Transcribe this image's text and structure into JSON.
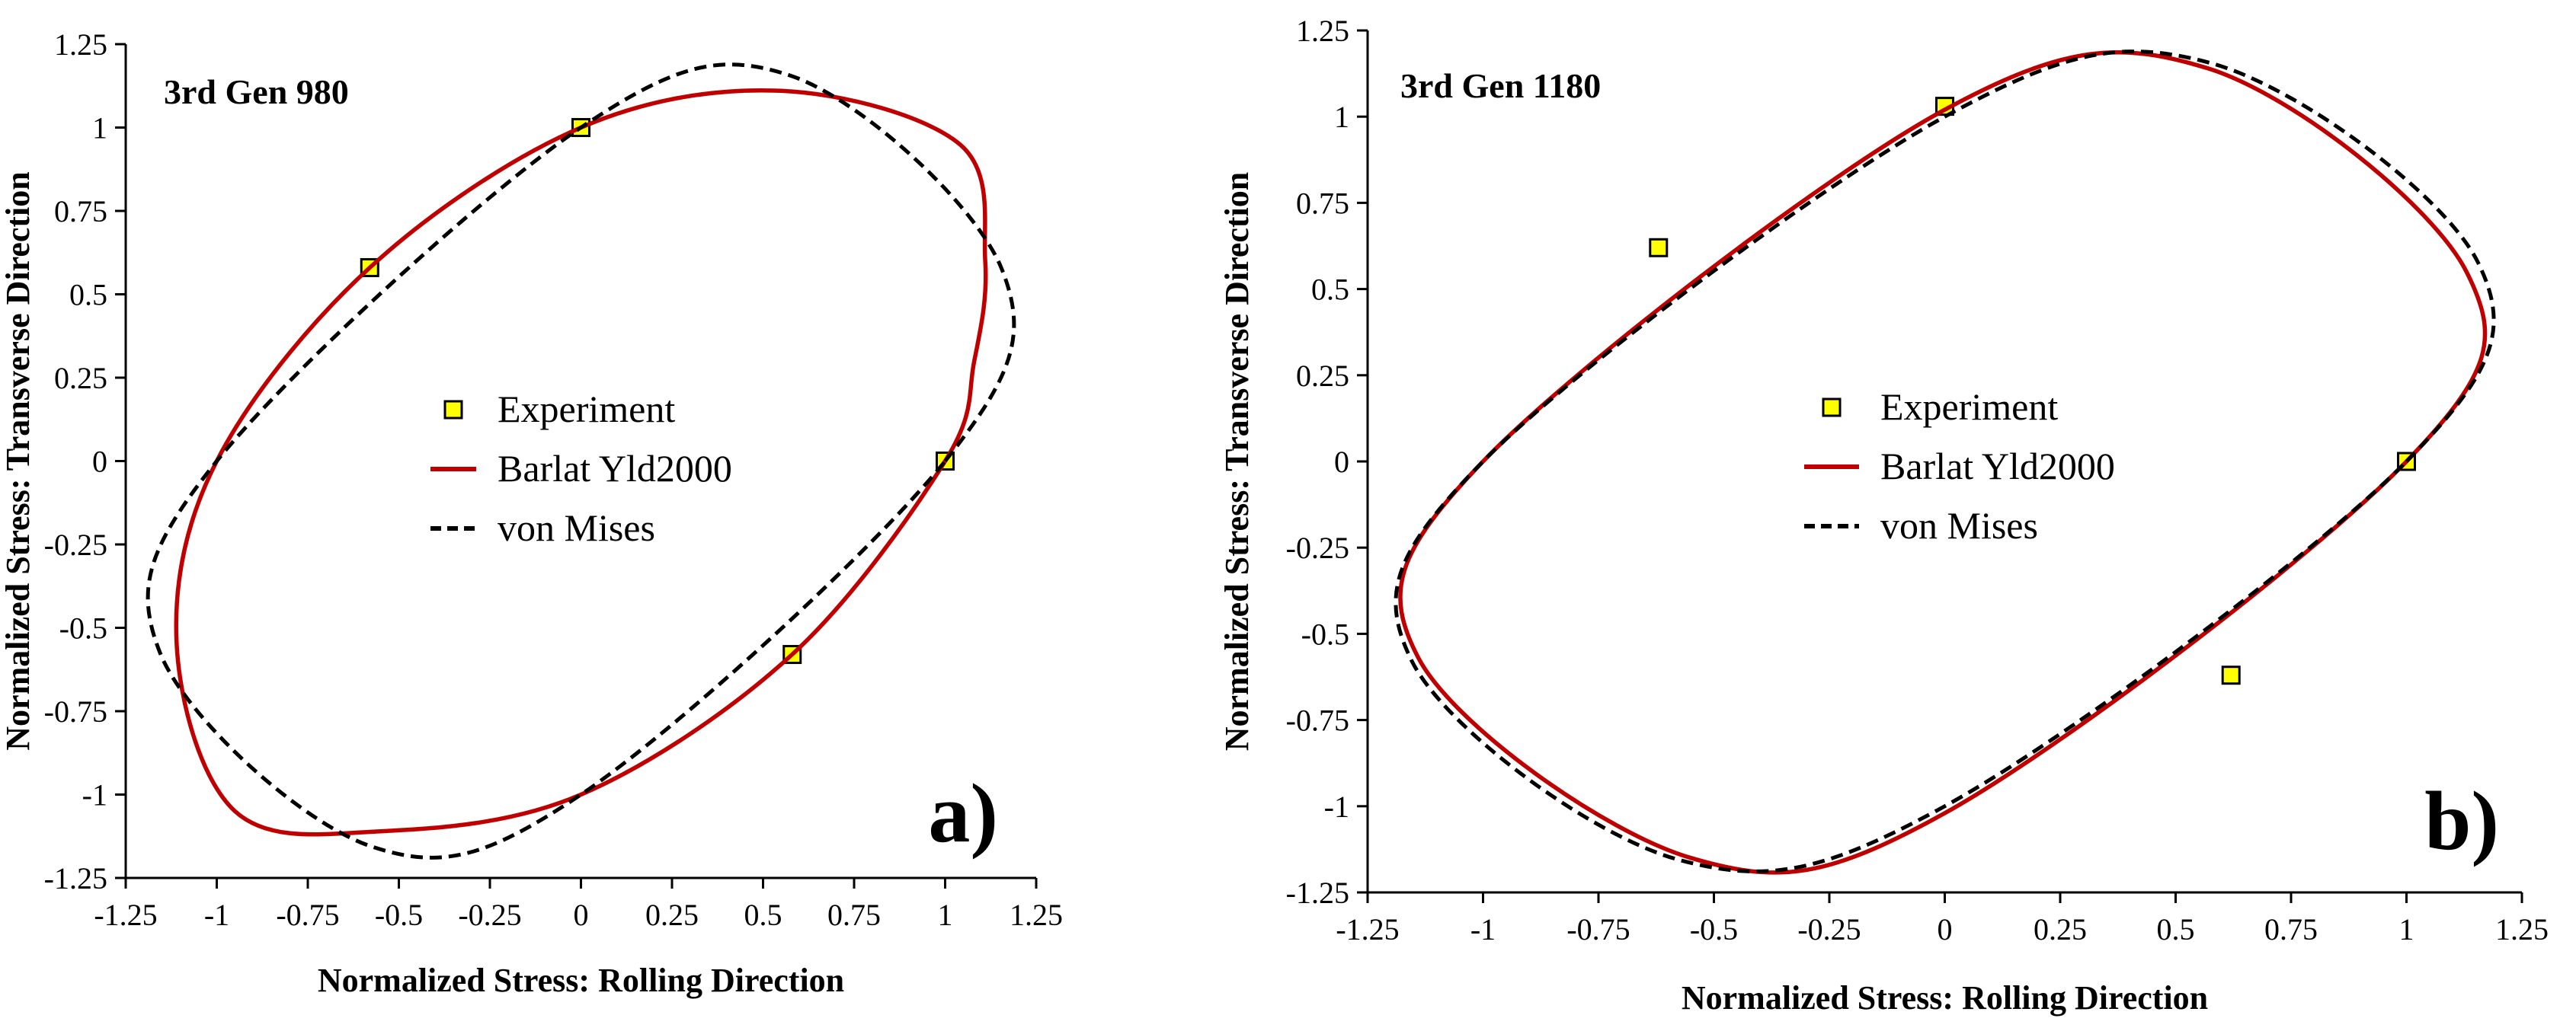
{
  "figure_labels": [
    "a)",
    "b)"
  ],
  "chart_data": [
    {
      "type": "line",
      "panel_label": "a)",
      "title": "3rd Gen 980",
      "xlabel": "Normalized Stress: Rolling Direction",
      "ylabel": "Normalized Stress: Transverse Direction",
      "xlim": [
        -1.25,
        1.25
      ],
      "ylim": [
        -1.25,
        1.25
      ],
      "xticks": [
        "-1.25",
        "-1",
        "-0.75",
        "-0.5",
        "-0.25",
        "0",
        "0.25",
        "0.5",
        "0.75",
        "1",
        "1.25"
      ],
      "yticks": [
        "1.25",
        "1",
        "0.75",
        "0.5",
        "0.25",
        "0",
        "-0.25",
        "-0.5",
        "-0.75",
        "-1",
        "-1.25"
      ],
      "legend": [
        "Experiment",
        "Barlat Yld2000",
        "von Mises"
      ],
      "series": [
        {
          "name": "Experiment",
          "style": "square-marker",
          "color": "#ffff00",
          "points": [
            [
              0,
              1.0
            ],
            [
              -0.58,
              0.58
            ],
            [
              1.0,
              0.0
            ],
            [
              0.58,
              -0.58
            ]
          ]
        },
        {
          "name": "Barlat Yld2000",
          "style": "solid",
          "color": "#c00000",
          "points": [
            [
              1.0,
              0.0
            ],
            [
              1.08,
              0.3
            ],
            [
              1.11,
              0.6
            ],
            [
              1.04,
              0.95
            ],
            [
              0.55,
              1.11
            ],
            [
              0.0,
              1.0
            ],
            [
              -0.58,
              0.58
            ],
            [
              -1.0,
              0.0
            ],
            [
              -1.11,
              -0.55
            ],
            [
              -0.95,
              -1.05
            ],
            [
              -0.55,
              -1.11
            ],
            [
              0.0,
              -1.0
            ],
            [
              0.58,
              -0.58
            ],
            [
              1.0,
              0.0
            ]
          ]
        },
        {
          "name": "von Mises",
          "style": "dashed",
          "color": "#000000",
          "points": [
            [
              1.0,
              0.0
            ],
            [
              1.155,
              0.577
            ],
            [
              0.577,
              1.155
            ],
            [
              0.0,
              1.0
            ],
            [
              -1.0,
              0.0
            ],
            [
              -1.155,
              -0.577
            ],
            [
              -0.577,
              -1.155
            ],
            [
              0.0,
              -1.0
            ],
            [
              1.0,
              0.0
            ]
          ]
        }
      ]
    },
    {
      "type": "line",
      "panel_label": "b)",
      "title": "3rd Gen 1180",
      "xlabel": "Normalized  Stress: Rolling Direction",
      "ylabel": "Normalized  Stress: Transverse  Direction",
      "xlim": [
        -1.25,
        1.25
      ],
      "ylim": [
        -1.25,
        1.25
      ],
      "xticks": [
        "-1.25",
        "-1",
        "-0.75",
        "-0.5",
        "-0.25",
        "0",
        "0.25",
        "0.5",
        "0.75",
        "1",
        "1.25"
      ],
      "yticks": [
        "1.25",
        "1",
        "0.75",
        "0.5",
        "0.25",
        "0",
        "-0.25",
        "-0.5",
        "-0.75",
        "-1",
        "-1.25"
      ],
      "legend": [
        "Experiment",
        "Barlat Yld2000",
        "von Mises"
      ],
      "series": [
        {
          "name": "Experiment",
          "style": "square-marker",
          "color": "#ffff00",
          "points": [
            [
              0,
              1.03
            ],
            [
              -0.62,
              0.62
            ],
            [
              1.0,
              0.0
            ],
            [
              0.62,
              -0.62
            ]
          ]
        },
        {
          "name": "Barlat Yld2000",
          "style": "solid",
          "color": "#c00000",
          "points": [
            [
              1.0,
              0.0
            ],
            [
              1.13,
              0.55
            ],
            [
              0.57,
              1.14
            ],
            [
              0.0,
              1.02
            ],
            [
              -1.0,
              0.0
            ],
            [
              -1.14,
              -0.57
            ],
            [
              -0.55,
              -1.15
            ],
            [
              0.0,
              -1.02
            ],
            [
              1.0,
              0.0
            ]
          ]
        },
        {
          "name": "von Mises",
          "style": "dashed",
          "color": "#000000",
          "points": [
            [
              1.0,
              0.0
            ],
            [
              1.155,
              0.577
            ],
            [
              0.577,
              1.155
            ],
            [
              0.0,
              1.0
            ],
            [
              -1.0,
              0.0
            ],
            [
              -1.155,
              -0.577
            ],
            [
              -0.577,
              -1.155
            ],
            [
              0.0,
              -1.0
            ],
            [
              1.0,
              0.0
            ]
          ]
        }
      ]
    }
  ]
}
